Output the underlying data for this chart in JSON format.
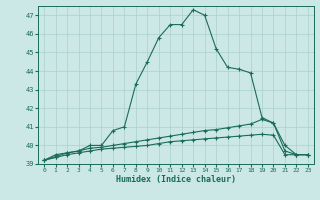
{
  "xlabel": "Humidex (Indice chaleur)",
  "x": [
    0,
    1,
    2,
    3,
    4,
    5,
    6,
    7,
    8,
    9,
    10,
    11,
    12,
    13,
    14,
    15,
    16,
    17,
    18,
    19,
    20,
    21,
    22,
    23
  ],
  "y_main": [
    39.2,
    39.5,
    39.6,
    39.7,
    40.0,
    40.0,
    40.8,
    41.0,
    43.3,
    44.5,
    45.8,
    46.5,
    46.5,
    47.3,
    47.0,
    45.2,
    44.2,
    44.1,
    43.9,
    41.5,
    41.2,
    40.0,
    39.5,
    39.5
  ],
  "y_line1": [
    39.2,
    39.4,
    39.6,
    39.7,
    39.85,
    39.9,
    40.0,
    40.1,
    40.2,
    40.3,
    40.4,
    40.5,
    40.6,
    40.7,
    40.8,
    40.85,
    40.95,
    41.05,
    41.15,
    41.4,
    41.2,
    39.7,
    39.5,
    39.5
  ],
  "y_line2": [
    39.2,
    39.35,
    39.5,
    39.6,
    39.7,
    39.8,
    39.85,
    39.9,
    39.95,
    40.0,
    40.1,
    40.2,
    40.25,
    40.3,
    40.35,
    40.4,
    40.45,
    40.5,
    40.55,
    40.6,
    40.55,
    39.5,
    39.5,
    39.5
  ],
  "line_color": "#1a6b5a",
  "bg_color": "#cce8e6",
  "grid_color": "#aacfcd",
  "ylim": [
    39,
    47.5
  ],
  "yticks": [
    39,
    40,
    41,
    42,
    43,
    44,
    45,
    46,
    47
  ],
  "xlim": [
    -0.5,
    23.5
  ]
}
